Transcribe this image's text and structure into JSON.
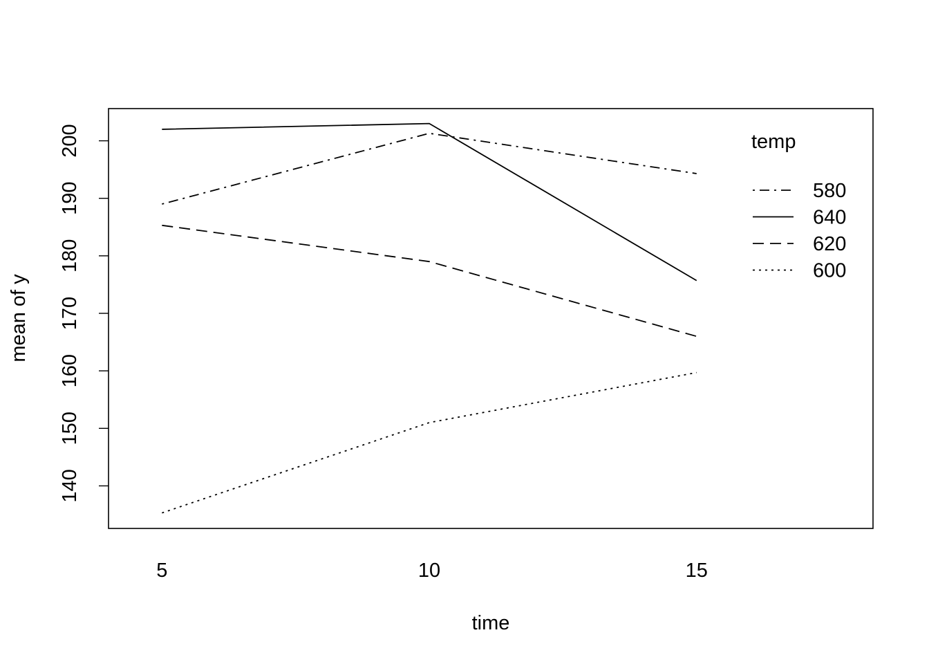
{
  "chart_data": {
    "type": "line",
    "xlabel": "time",
    "ylabel": "mean of  y",
    "x": [
      5,
      10,
      15
    ],
    "xticks": [
      "5",
      "10",
      "15"
    ],
    "yticks": [
      "140",
      "150",
      "160",
      "170",
      "180",
      "190",
      "200"
    ],
    "ylim": [
      132.6,
      205.6
    ],
    "legend": {
      "title": "temp",
      "position": "top-right"
    },
    "series": [
      {
        "name": "580",
        "linestyle": "dotdash",
        "values": [
          189.0,
          201.3,
          194.3
        ]
      },
      {
        "name": "640",
        "linestyle": "solid",
        "values": [
          202.0,
          203.0,
          175.7
        ]
      },
      {
        "name": "620",
        "linestyle": "dashed",
        "values": [
          185.3,
          179.0,
          166.0
        ]
      },
      {
        "name": "600",
        "linestyle": "dotted",
        "values": [
          135.3,
          151.0,
          159.7
        ]
      }
    ],
    "colors": {
      "line": "#000000",
      "background": "#ffffff"
    }
  }
}
